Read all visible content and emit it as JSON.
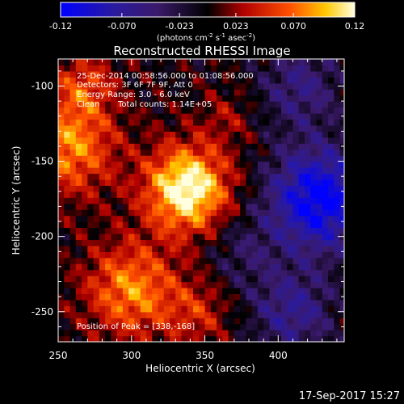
{
  "colorbar": {
    "ticks": [
      "-0.12",
      "-0.070",
      "-0.023",
      "0.023",
      "0.070",
      "0.12"
    ],
    "units_prefix": "(photons cm",
    "units_exp1": "-2",
    "units_mid": " s",
    "units_exp2": "-1",
    "units_mid2": " asec",
    "units_exp3": "-2",
    "units_suffix": ")"
  },
  "footer": {
    "timestamp": "17-Sep-2017 15:27"
  },
  "chart_data": {
    "type": "heatmap",
    "title": "Reconstructed RHESSI Image",
    "xlabel": "Heliocentric X (arcsec)",
    "ylabel": "Heliocentric Y (arcsec)",
    "xlim": [
      250,
      445
    ],
    "ylim": [
      -270,
      -82
    ],
    "x_ticks": [
      "250",
      "300",
      "350",
      "400"
    ],
    "y_ticks": [
      "-100",
      "-150",
      "-200",
      "-250"
    ],
    "color_range": [
      -0.12,
      0.12
    ],
    "colormap": [
      "#0000ff",
      "#3a1a6a",
      "#000000",
      "#aa0000",
      "#ff5000",
      "#ffd000",
      "#ffffe0"
    ],
    "annotations": {
      "time_range": "25-Dec-2014 00:58:56.000 to 01:08:56.000",
      "detectors": "Detectors: 3F 6F 7F 9F, Att 0",
      "energy": "Energy Range: 3.0 - 6.0 keV",
      "method": "Clean",
      "counts": "Total counts: 1.14E+05",
      "peak": "Position of Peak = [338,-168]"
    },
    "peak": {
      "x": 338,
      "y": -168,
      "value": 0.12
    },
    "sources": [
      {
        "x": 338,
        "y": -168,
        "sigma": 20,
        "amp": 0.13
      },
      {
        "x": 300,
        "y": -235,
        "sigma": 22,
        "amp": 0.08
      },
      {
        "x": 258,
        "y": -140,
        "sigma": 22,
        "amp": 0.08
      },
      {
        "x": 268,
        "y": -100,
        "sigma": 15,
        "amp": 0.05
      },
      {
        "x": 365,
        "y": -120,
        "sigma": 13,
        "amp": 0.025
      },
      {
        "x": 345,
        "y": -250,
        "sigma": 16,
        "amp": 0.04
      },
      {
        "x": 428,
        "y": -175,
        "sigma": 24,
        "amp": -0.12
      },
      {
        "x": 410,
        "y": -250,
        "sigma": 20,
        "amp": -0.06
      },
      {
        "x": 415,
        "y": -100,
        "sigma": 20,
        "amp": -0.05
      },
      {
        "x": 375,
        "y": -210,
        "sigma": 18,
        "amp": -0.03
      }
    ]
  }
}
